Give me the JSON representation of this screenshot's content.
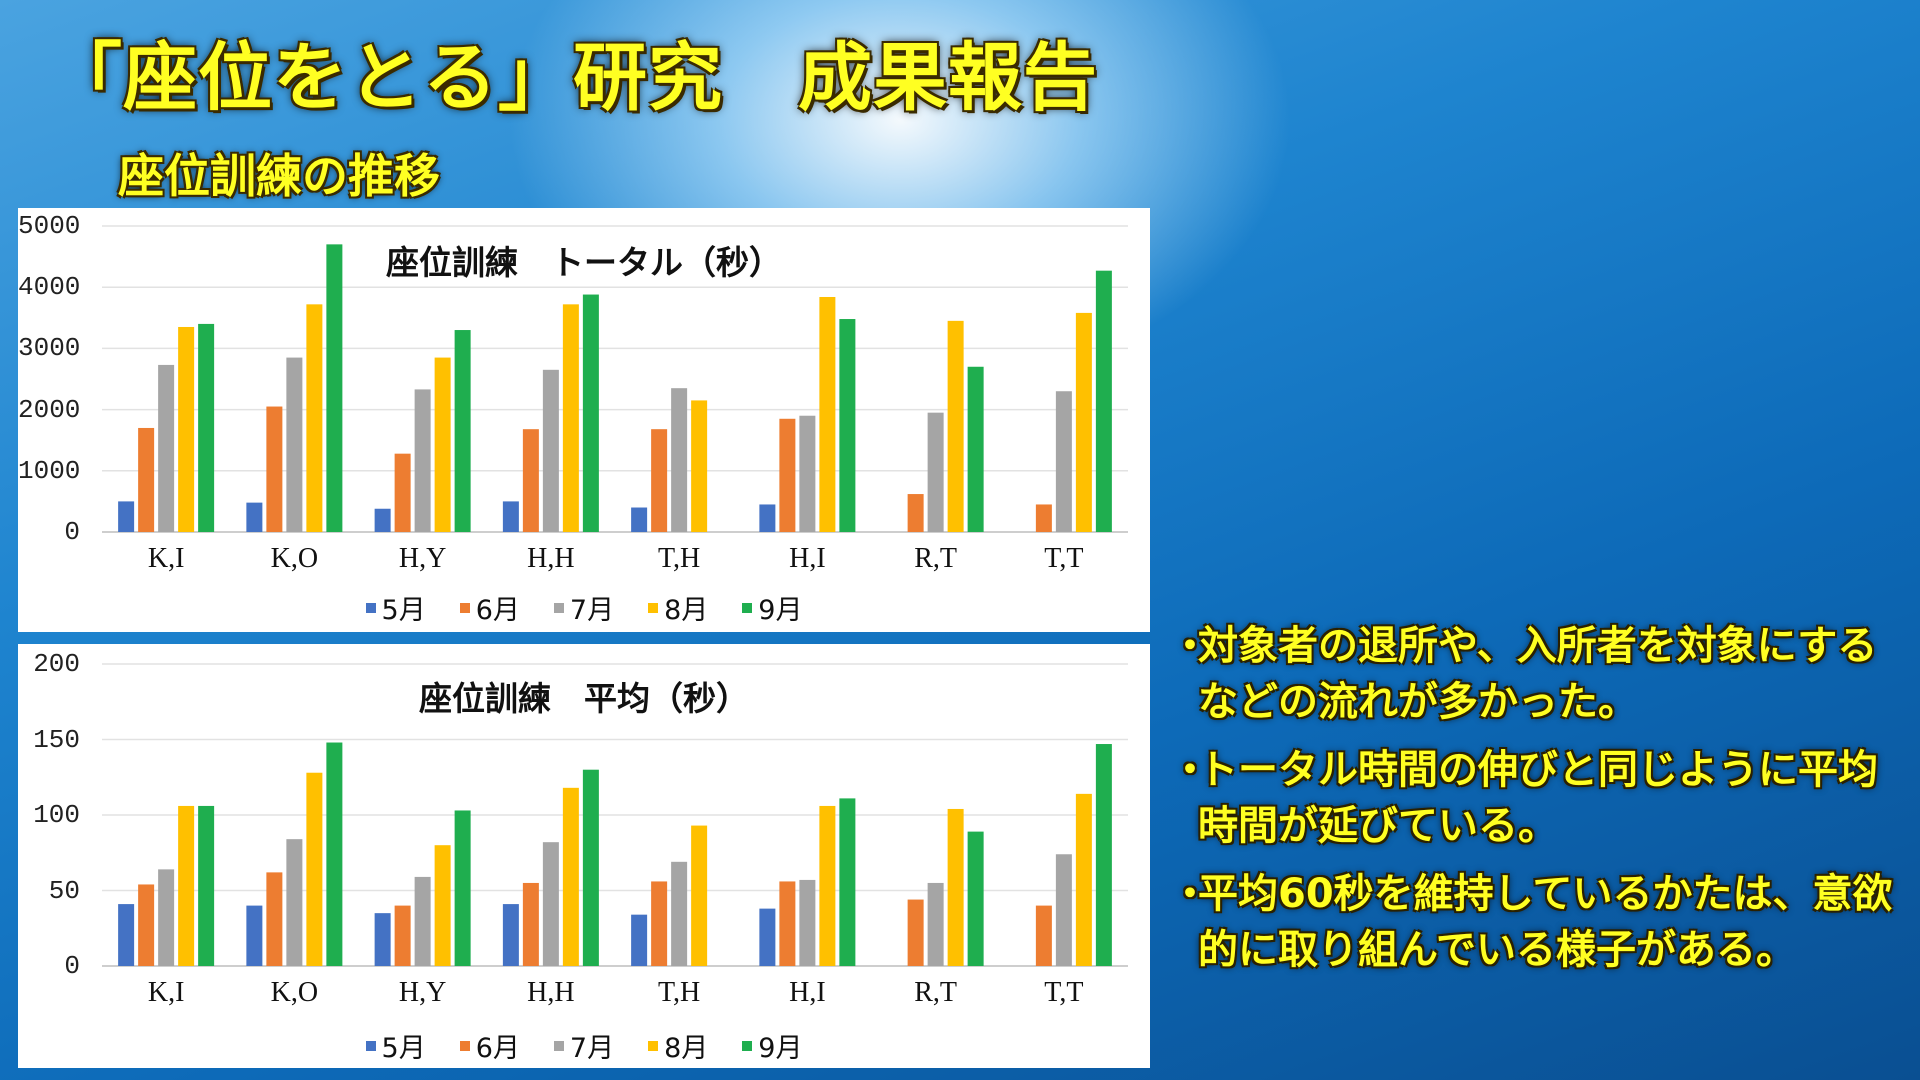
{
  "slide": {
    "title": "「座位をとる」研究　成果報告",
    "subtitle": "座位訓練の推移",
    "bullets": [
      {
        "mark": "・",
        "text": "対象者の退所や、入所者を対象にするなどの流れが多かった。"
      },
      {
        "mark": "・",
        "text": "トータル時間の伸びと同じように平均時間が延びている。"
      },
      {
        "mark": "・",
        "text": "平均60秒を維持しているかたは、意欲的に取り組んでいる様子がある。"
      }
    ]
  },
  "series_colors": [
    "#4472c4",
    "#ed7d31",
    "#a5a5a5",
    "#ffc000",
    "#1fae4f"
  ],
  "chart_data": [
    {
      "type": "bar",
      "title": "座位訓練　トータル（秒）",
      "categories": [
        "K,I",
        "K,O",
        "H,Y",
        "H,H",
        "T,H",
        "H,I",
        "R,T",
        "T,T"
      ],
      "ylim": [
        0,
        5000
      ],
      "yticks": [
        "0",
        "1000",
        "2000",
        "3000",
        "4000",
        "5000"
      ],
      "grid": true,
      "legend": "bottom",
      "series": [
        {
          "name": "5月",
          "values": [
            500,
            480,
            380,
            500,
            400,
            450,
            0,
            0
          ]
        },
        {
          "name": "6月",
          "values": [
            1700,
            2050,
            1280,
            1680,
            1680,
            1850,
            620,
            450
          ]
        },
        {
          "name": "7月",
          "values": [
            2730,
            2850,
            2330,
            2650,
            2350,
            1900,
            1950,
            2300
          ]
        },
        {
          "name": "8月",
          "values": [
            3350,
            3720,
            2850,
            3720,
            2150,
            3840,
            3450,
            3580
          ]
        },
        {
          "name": "9月",
          "values": [
            3400,
            4700,
            3300,
            3880,
            0,
            3480,
            2700,
            4270
          ]
        }
      ]
    },
    {
      "type": "bar",
      "title": "座位訓練　平均（秒）",
      "categories": [
        "K,I",
        "K,O",
        "H,Y",
        "H,H",
        "T,H",
        "H,I",
        "R,T",
        "T,T"
      ],
      "ylim": [
        0,
        200
      ],
      "yticks": [
        "0",
        "50",
        "100",
        "150",
        "200"
      ],
      "grid": true,
      "legend": "bottom",
      "series": [
        {
          "name": "5月",
          "values": [
            41,
            40,
            35,
            41,
            34,
            38,
            0,
            0
          ]
        },
        {
          "name": "6月",
          "values": [
            54,
            62,
            40,
            55,
            56,
            56,
            44,
            40
          ]
        },
        {
          "name": "7月",
          "values": [
            64,
            84,
            59,
            82,
            69,
            57,
            55,
            74
          ]
        },
        {
          "name": "8月",
          "values": [
            106,
            128,
            80,
            118,
            93,
            106,
            104,
            114
          ]
        },
        {
          "name": "9月",
          "values": [
            106,
            148,
            103,
            130,
            0,
            111,
            89,
            147
          ]
        }
      ]
    }
  ]
}
